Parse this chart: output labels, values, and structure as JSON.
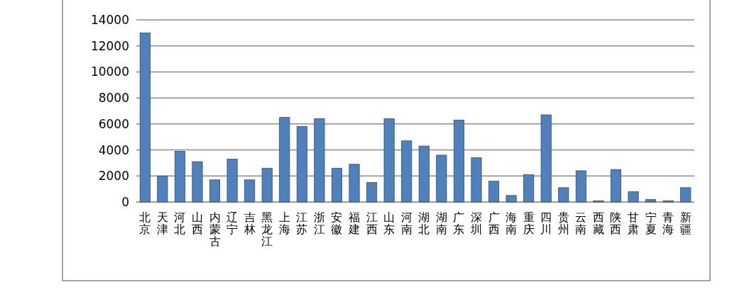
{
  "chart_data": {
    "type": "bar",
    "categories": [
      "北京",
      "天津",
      "河北",
      "山西",
      "内蒙古",
      "辽宁",
      "吉林",
      "黑龙江",
      "上海",
      "江苏",
      "浙江",
      "安徽",
      "福建",
      "江西",
      "山东",
      "河南",
      "湖北",
      "湖南",
      "广东",
      "深圳",
      "广西",
      "海南",
      "重庆",
      "四川",
      "贵州",
      "云南",
      "西藏",
      "陕西",
      "甘肃",
      "宁夏",
      "青海",
      "新疆"
    ],
    "values": [
      13000,
      2000,
      3900,
      3100,
      1700,
      3300,
      1700,
      2600,
      6500,
      5800,
      6400,
      2600,
      2900,
      1500,
      6400,
      4700,
      4300,
      3600,
      6300,
      3400,
      1600,
      500,
      2100,
      6700,
      1100,
      2400,
      100,
      2500,
      800,
      200,
      100,
      1100
    ],
    "color": "#4f81bd",
    "ylim": [
      0,
      14000
    ],
    "yticks": [
      0,
      2000,
      4000,
      6000,
      8000,
      10000,
      12000,
      14000
    ],
    "grid": "y"
  }
}
